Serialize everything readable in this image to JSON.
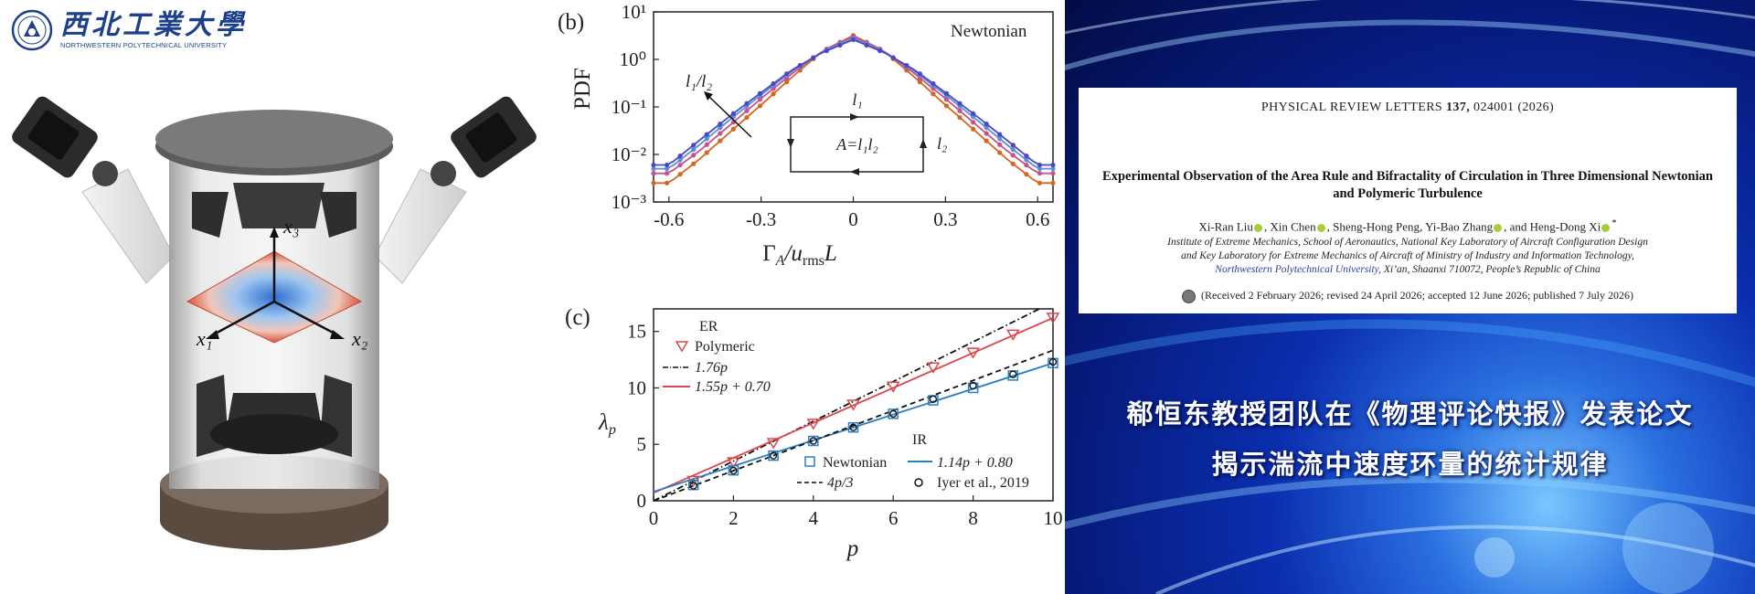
{
  "left_panel": {
    "logo_cn": "西北工業大學",
    "logo_en": "NORTHWESTERN POLYTECHNICAL UNIVERSITY",
    "axis_labels": {
      "x3": "x₃",
      "x1": "x₁",
      "x2": "x₂"
    }
  },
  "chart_b": {
    "panel_label": "(b)",
    "annotation": "Newtonian",
    "arrow_label": "l₁/l₂",
    "box_labels": {
      "top": "l₁",
      "right": "l₂",
      "center": "A=l₁l₂"
    },
    "ylabel": "PDF",
    "xlabel": "Γ",
    "xlabel_sub": "A",
    "xlabel_mid": "/u",
    "xlabel_sub2": "rms",
    "xlabel_end": "L"
  },
  "chart_c": {
    "panel_label": "(c)",
    "ylabel": "λ",
    "ylabel_sub": "p",
    "xlabel": "p",
    "legend_er": {
      "heading": "ER",
      "polymeric": "Polymeric",
      "line_176": "1.76p",
      "fit_155": "1.55p + 0.70"
    },
    "legend_ir": {
      "heading": "IR",
      "newtonian": "Newtonian",
      "fit_114": "1.14p + 0.80",
      "line_4p3": "4p/3",
      "iyer": "Iyer et al., 2019"
    }
  },
  "chart_data": [
    {
      "type": "line",
      "title": "",
      "xlabel": "Γ_A/u_rms L",
      "ylabel": "PDF",
      "xlim": [
        -0.65,
        0.65
      ],
      "ylim": [
        0.001,
        10
      ],
      "yscale": "log",
      "x_ticks": [
        "-0.6",
        "-0.3",
        "0",
        "0.3",
        "0.6"
      ],
      "y_ticks": [
        "10⁻³",
        "10⁻²",
        "10⁻¹",
        "10⁰",
        "10¹"
      ],
      "x": [
        -0.6,
        -0.5,
        -0.4,
        -0.3,
        -0.2,
        -0.1,
        0,
        0.1,
        0.2,
        0.3,
        0.4,
        0.5,
        0.6
      ],
      "series": [
        {
          "color": "#d2691e",
          "values": [
            0.0025,
            0.008,
            0.03,
            0.11,
            0.42,
            1.5,
            3.2,
            1.5,
            0.42,
            0.11,
            0.03,
            0.008,
            0.0025
          ]
        },
        {
          "color": "#c8508c",
          "values": [
            0.004,
            0.012,
            0.042,
            0.15,
            0.5,
            1.5,
            3.0,
            1.5,
            0.5,
            0.15,
            0.042,
            0.012,
            0.004
          ]
        },
        {
          "color": "#5a8fd6",
          "values": [
            0.005,
            0.016,
            0.055,
            0.18,
            0.56,
            1.45,
            2.8,
            1.45,
            0.56,
            0.18,
            0.055,
            0.016,
            0.005
          ]
        },
        {
          "color": "#4848c8",
          "values": [
            0.006,
            0.02,
            0.065,
            0.2,
            0.6,
            1.4,
            2.6,
            1.4,
            0.6,
            0.2,
            0.065,
            0.02,
            0.006
          ]
        }
      ]
    },
    {
      "type": "scatter",
      "title": "",
      "xlabel": "p",
      "ylabel": "λ_p",
      "xlim": [
        0,
        10
      ],
      "ylim": [
        0,
        17
      ],
      "x_ticks": [
        "0",
        "2",
        "4",
        "6",
        "8",
        "10"
      ],
      "y_ticks": [
        "0",
        "5",
        "10",
        "15"
      ],
      "series": [
        {
          "name": "Polymeric",
          "marker": "triangle-down",
          "color": "#d9484f",
          "x": [
            1,
            2,
            3,
            4,
            5,
            6,
            7,
            8,
            9,
            10
          ],
          "y": [
            1.75,
            3.4,
            5.1,
            6.8,
            8.5,
            10.1,
            11.8,
            13.1,
            14.7,
            16.2
          ]
        },
        {
          "name": "1.76p",
          "line": "dash-dot",
          "color": "#111111",
          "x": [
            0,
            10
          ],
          "y": [
            0,
            17.6
          ]
        },
        {
          "name": "1.55p + 0.70",
          "line": "solid",
          "color": "#d9484f",
          "x": [
            0,
            10
          ],
          "y": [
            0.7,
            16.2
          ]
        },
        {
          "name": "Newtonian",
          "marker": "square",
          "color": "#2a7fc0",
          "x": [
            1,
            2,
            3,
            4,
            5,
            6,
            7,
            8,
            9,
            10
          ],
          "y": [
            1.4,
            2.7,
            4.0,
            5.3,
            6.5,
            7.7,
            8.9,
            10.0,
            11.1,
            12.2
          ]
        },
        {
          "name": "1.14p + 0.80",
          "line": "solid",
          "color": "#2a7fc0",
          "x": [
            0,
            10
          ],
          "y": [
            0.8,
            12.2
          ]
        },
        {
          "name": "4p/3",
          "line": "dashed",
          "color": "#111111",
          "x": [
            0,
            10
          ],
          "y": [
            0,
            13.33
          ]
        },
        {
          "name": "Iyer et al., 2019",
          "marker": "circle",
          "color": "#111111",
          "x": [
            1,
            2,
            3,
            4,
            5,
            6,
            7,
            8,
            9,
            10
          ],
          "y": [
            1.33,
            2.67,
            4.0,
            5.3,
            6.5,
            7.7,
            9.0,
            10.2,
            11.2,
            12.3
          ]
        }
      ]
    }
  ],
  "paper": {
    "journal": "PHYSICAL REVIEW LETTERS",
    "volume": "137,",
    "article": "024001 (2026)",
    "title": "Experimental Observation of the Area Rule and Bifractality of Circulation in Three Dimensional Newtonian and Polymeric Turbulence",
    "authors": [
      "Xi-Ran Liu",
      "Xin Chen",
      "Sheng-Hong Peng",
      "Yi-Bao Zhang",
      "and Heng-Dong Xi"
    ],
    "author_mark": "*",
    "affiliation_1": "Institute of Extreme Mechanics, School of Aeronautics, National Key Laboratory of Aircraft Configuration Design",
    "affiliation_2": "and Key Laboratory for Extreme Mechanics of Aircraft of Ministry of Industry and Information Technology,",
    "affiliation_npu": "Northwestern Polytechnical University,",
    "affiliation_3": " Xi’an, Shaanxi 710072, People’s Republic of China",
    "received": "(Received 2 February 2026; revised 24 April 2026; accepted 12 June 2026; published 7 July 2026)"
  },
  "headline": {
    "line1": "郗恒东教授团队在《物理评论快报》发表论文",
    "line2": "揭示湍流中速度环量的统计规律"
  }
}
